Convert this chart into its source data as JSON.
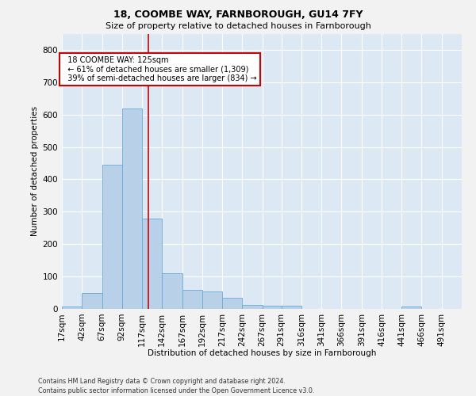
{
  "title1": "18, COOMBE WAY, FARNBOROUGH, GU14 7FY",
  "title2": "Size of property relative to detached houses in Farnborough",
  "xlabel": "Distribution of detached houses by size in Farnborough",
  "ylabel": "Number of detached properties",
  "annotation_line1": "18 COOMBE WAY: 125sqm",
  "annotation_line2": "← 61% of detached houses are smaller (1,309)",
  "annotation_line3": "39% of semi-detached houses are larger (834) →",
  "property_size": 125,
  "bin_edges": [
    17,
    42,
    67,
    92,
    117,
    142,
    167,
    192,
    217,
    242,
    267,
    291,
    316,
    341,
    366,
    391,
    416,
    441,
    466,
    491,
    516
  ],
  "bar_heights": [
    8,
    50,
    445,
    620,
    280,
    110,
    58,
    55,
    35,
    13,
    10,
    10,
    0,
    0,
    0,
    0,
    0,
    8,
    0,
    0
  ],
  "bar_color": "#b8d0e8",
  "bar_edge_color": "#6aaad4",
  "vline_color": "#cc0000",
  "vline_x": 125,
  "ylim": [
    0,
    850
  ],
  "yticks": [
    0,
    100,
    200,
    300,
    400,
    500,
    600,
    700,
    800
  ],
  "background_color": "#dce9f5",
  "grid_color": "#ffffff",
  "footer_line1": "Contains HM Land Registry data © Crown copyright and database right 2024.",
  "footer_line2": "Contains public sector information licensed under the Open Government Licence v3.0."
}
